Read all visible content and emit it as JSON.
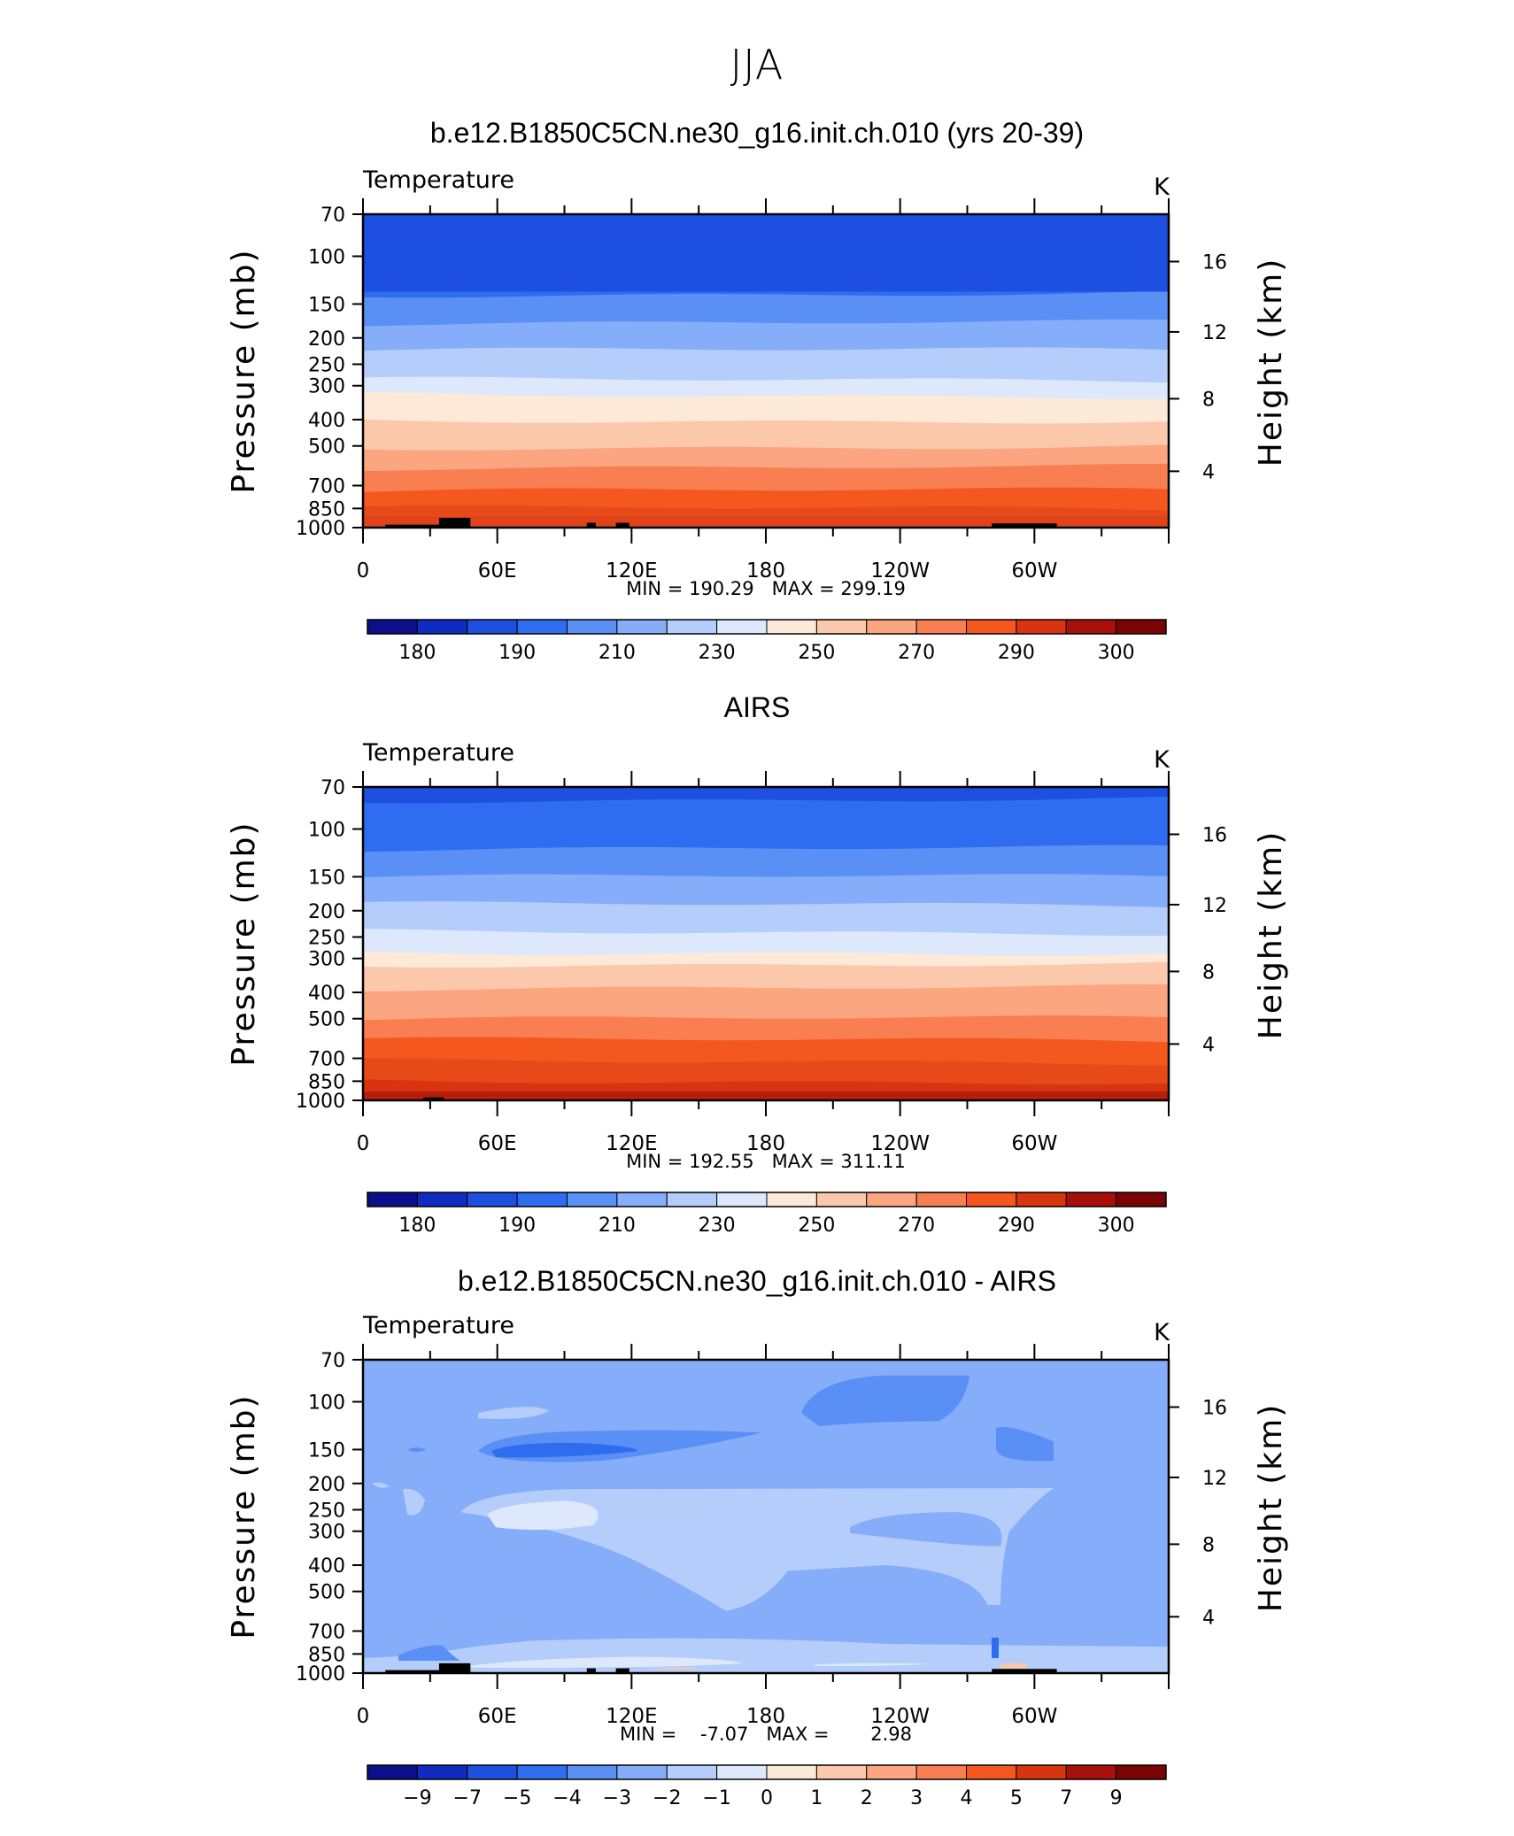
{
  "suptitle": "JJA",
  "panels": [
    {
      "title": "b.e12.B1850C5CN.ne30_g16.init.ch.010 (yrs 20-39)",
      "variable": "Temperature",
      "units": "K",
      "stats": "MIN = 190.29   MAX = 299.19",
      "colorbar_labels": [
        "180",
        "190",
        "210",
        "230",
        "250",
        "270",
        "290",
        "300"
      ]
    },
    {
      "title": "AIRS",
      "variable": "Temperature",
      "units": "K",
      "stats": "MIN = 192.55   MAX = 311.11",
      "colorbar_labels": [
        "180",
        "190",
        "210",
        "230",
        "250",
        "270",
        "290",
        "300"
      ]
    },
    {
      "title": "b.e12.B1850C5CN.ne30_g16.init.ch.010 - AIRS",
      "variable": "Temperature",
      "units": "K",
      "stats": "MIN =    -7.07   MAX =       2.98",
      "colorbar_labels": [
        "−9",
        "−7",
        "−5",
        "−4",
        "−3",
        "−2",
        "−1",
        "0",
        "1",
        "2",
        "3",
        "4",
        "5",
        "7",
        "9"
      ]
    }
  ],
  "axes": {
    "left_label": "Pressure (mb)",
    "right_label": "Height (km)",
    "pressure_ticks": [
      "70",
      "100",
      "150",
      "200",
      "250",
      "300",
      "400",
      "500",
      "700",
      "850",
      "1000"
    ],
    "height_ticks": [
      "16",
      "12",
      "8",
      "4"
    ],
    "lon_ticks": [
      "0",
      "60E",
      "120E",
      "180",
      "120W",
      "60W"
    ]
  },
  "chart_data": [
    {
      "type": "heatmap",
      "title": "b.e12.B1850C5CN.ne30_g16.init.ch.010 (yrs 20-39)",
      "variable": "Temperature",
      "units": "K",
      "x": "longitude 0 to 360",
      "ylabel": "Pressure (mb)",
      "ylim": [
        1000,
        70
      ],
      "min": 190.29,
      "max": 299.19,
      "levels": [
        180,
        185,
        190,
        200,
        210,
        220,
        230,
        240,
        250,
        260,
        270,
        280,
        290,
        295,
        300
      ],
      "colors": [
        "#0b0f8a",
        "#102bc2",
        "#1d4fe0",
        "#2f6df0",
        "#5a8ff5",
        "#86adf9",
        "#b4cdfb",
        "#dde8fc",
        "#fde9d8",
        "#fcc8ab",
        "#fba581",
        "#f97f53",
        "#f4581f",
        "#d8340f",
        "#a80f0b",
        "#7a0303"
      ],
      "band_pressure_levels": [
        70,
        138,
        176,
        222,
        286,
        326,
        403,
        505,
        600,
        730,
        850,
        1000
      ],
      "band_colors": [
        "#2f6df0",
        "#5a8ff5",
        "#86adf9",
        "#b4cdfb",
        "#dde8fc",
        "#fde9d8",
        "#fcc8ab",
        "#fba581",
        "#f97f53",
        "#f4581f",
        "#e64a19"
      ]
    },
    {
      "type": "heatmap",
      "title": "AIRS",
      "variable": "Temperature",
      "units": "K",
      "x": "longitude 0 to 360",
      "ylabel": "Pressure (mb)",
      "ylim": [
        1000,
        70
      ],
      "min": 192.55,
      "max": 311.11,
      "levels": [
        180,
        185,
        190,
        200,
        210,
        220,
        230,
        240,
        250,
        260,
        270,
        280,
        290,
        295,
        300
      ],
      "colors": [
        "#0b0f8a",
        "#102bc2",
        "#1d4fe0",
        "#2f6df0",
        "#5a8ff5",
        "#86adf9",
        "#b4cdfb",
        "#dde8fc",
        "#fde9d8",
        "#fcc8ab",
        "#fba581",
        "#f97f53",
        "#f4581f",
        "#d8340f",
        "#a80f0b",
        "#7a0303"
      ],
      "band_pressure_levels": [
        70,
        78,
        118,
        150,
        190,
        240,
        285,
        315,
        385,
        500,
        600,
        720,
        850,
        960,
        1000
      ],
      "band_colors": [
        "#1d4fe0",
        "#2f6df0",
        "#5a8ff5",
        "#86adf9",
        "#b4cdfb",
        "#dde8fc",
        "#fde9d8",
        "#fcc8ab",
        "#fba581",
        "#f97f53",
        "#f4581f",
        "#e64a19",
        "#d8340f",
        "#a80f0b"
      ]
    },
    {
      "type": "heatmap",
      "title": "b.e12.B1850C5CN.ne30_g16.init.ch.010 - AIRS",
      "variable": "Temperature",
      "units": "K",
      "x": "longitude 0 to 360",
      "ylabel": "Pressure (mb)",
      "ylim": [
        1000,
        70
      ],
      "min": -7.07,
      "max": 2.98,
      "levels": [
        -9,
        -7,
        -5,
        -4,
        -3,
        -2,
        -1,
        0,
        1,
        2,
        3,
        4,
        5,
        7,
        9
      ],
      "colors": [
        "#0b0f8a",
        "#102bc2",
        "#1d4fe0",
        "#2f6df0",
        "#5a8ff5",
        "#86adf9",
        "#b4cdfb",
        "#dde8fc",
        "#fde9d8",
        "#fcc8ab",
        "#fba581",
        "#f97f53",
        "#f4581f",
        "#d8340f",
        "#a80f0b",
        "#7a0303"
      ],
      "background_color": "#86adf9"
    }
  ]
}
